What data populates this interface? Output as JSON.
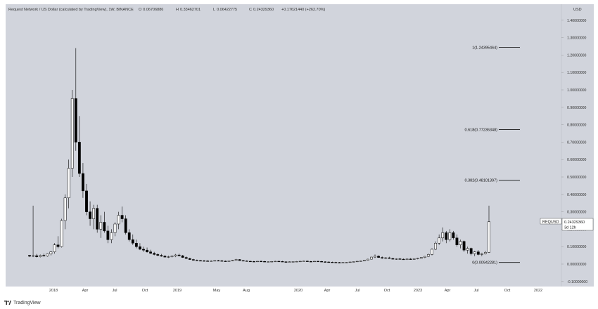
{
  "header": {
    "title": "Request Network / US Dollar (calculated by TradingView), 1W, BINANCE",
    "open": "0.06706886",
    "high": "0.33462701",
    "low": "0.06422775",
    "close": "0.24329360",
    "change": "+0.17621440 (+262.70%)"
  },
  "axis": {
    "currency": "USD",
    "y_ticks": [
      "1.40000000",
      "1.30000000",
      "1.20000000",
      "1.10000000",
      "1.00000000",
      "0.90000000",
      "0.80000000",
      "0.70000000",
      "0.60000000",
      "0.50000000",
      "0.40000000",
      "0.30000000",
      "0.20000000",
      "0.10000000",
      "0.00000000",
      "-0.10000000"
    ],
    "x_ticks": [
      "2018",
      "Apr",
      "Jul",
      "Oct",
      "2019",
      "May",
      "Aug",
      "2020",
      "Apr",
      "Jul",
      "Oct",
      "2023",
      "Apr",
      "Jul",
      "Oct",
      "2022"
    ]
  },
  "price_label": {
    "ticker": "REQUSD",
    "value": "0.24329360",
    "countdown": "3d 12h"
  },
  "fib_levels": [
    {
      "label": "1(1.24395464)",
      "value": 1.24395464
    },
    {
      "label": "0.618(0.77236348)",
      "value": 0.77236348
    },
    {
      "label": "0.382(0.48101397)",
      "value": 0.48101397
    },
    {
      "label": "0(0.00942281)",
      "value": 0.00942281
    }
  ],
  "footer": {
    "brand": "TradingView"
  },
  "colors": {
    "background": "#d1d4dc",
    "candle": "#000000",
    "axis_text": "#333333"
  },
  "chart_data": {
    "type": "candlestick",
    "title": "Request Network / US Dollar (calculated by TradingView), 1W, BINANCE",
    "ylabel": "USD",
    "ylim": [
      -0.12,
      1.5
    ],
    "grid": false,
    "series": [
      {
        "name": "REQUSD",
        "values": [
          [
            0.05,
            0.052,
            0.04,
            0.045
          ],
          [
            0.045,
            0.335,
            0.04,
            0.048
          ],
          [
            0.048,
            0.058,
            0.038,
            0.042
          ],
          [
            0.042,
            0.055,
            0.038,
            0.05
          ],
          [
            0.05,
            0.06,
            0.044,
            0.046
          ],
          [
            0.046,
            0.06,
            0.042,
            0.058
          ],
          [
            0.058,
            0.075,
            0.05,
            0.07
          ],
          [
            0.07,
            0.12,
            0.06,
            0.11
          ],
          [
            0.11,
            0.16,
            0.09,
            0.1
          ],
          [
            0.1,
            0.26,
            0.095,
            0.25
          ],
          [
            0.25,
            0.4,
            0.2,
            0.38
          ],
          [
            0.38,
            0.6,
            0.32,
            0.55
          ],
          [
            0.55,
            1.0,
            0.5,
            0.95
          ],
          [
            0.95,
            1.24,
            0.65,
            0.7
          ],
          [
            0.7,
            0.85,
            0.5,
            0.52
          ],
          [
            0.52,
            0.58,
            0.38,
            0.42
          ],
          [
            0.42,
            0.46,
            0.28,
            0.3
          ],
          [
            0.3,
            0.36,
            0.22,
            0.26
          ],
          [
            0.26,
            0.34,
            0.2,
            0.32
          ],
          [
            0.32,
            0.34,
            0.18,
            0.2
          ],
          [
            0.2,
            0.28,
            0.15,
            0.24
          ],
          [
            0.24,
            0.3,
            0.18,
            0.19
          ],
          [
            0.19,
            0.22,
            0.12,
            0.14
          ],
          [
            0.14,
            0.2,
            0.12,
            0.18
          ],
          [
            0.18,
            0.24,
            0.16,
            0.23
          ],
          [
            0.23,
            0.3,
            0.2,
            0.28
          ],
          [
            0.28,
            0.33,
            0.24,
            0.26
          ],
          [
            0.26,
            0.28,
            0.17,
            0.18
          ],
          [
            0.18,
            0.2,
            0.13,
            0.14
          ],
          [
            0.14,
            0.17,
            0.11,
            0.12
          ],
          [
            0.12,
            0.14,
            0.09,
            0.1
          ],
          [
            0.1,
            0.12,
            0.08,
            0.085
          ],
          [
            0.085,
            0.1,
            0.07,
            0.08
          ],
          [
            0.08,
            0.095,
            0.065,
            0.07
          ],
          [
            0.07,
            0.082,
            0.058,
            0.062
          ],
          [
            0.062,
            0.07,
            0.05,
            0.055
          ],
          [
            0.055,
            0.062,
            0.045,
            0.05
          ],
          [
            0.05,
            0.058,
            0.042,
            0.045
          ],
          [
            0.045,
            0.052,
            0.038,
            0.04
          ],
          [
            0.04,
            0.048,
            0.035,
            0.042
          ],
          [
            0.042,
            0.05,
            0.038,
            0.046
          ],
          [
            0.046,
            0.058,
            0.04,
            0.052
          ],
          [
            0.052,
            0.06,
            0.044,
            0.048
          ],
          [
            0.048,
            0.052,
            0.036,
            0.038
          ],
          [
            0.038,
            0.044,
            0.03,
            0.032
          ],
          [
            0.032,
            0.036,
            0.024,
            0.026
          ],
          [
            0.026,
            0.03,
            0.02,
            0.022
          ],
          [
            0.022,
            0.026,
            0.018,
            0.02
          ],
          [
            0.02,
            0.024,
            0.017,
            0.019
          ],
          [
            0.019,
            0.023,
            0.016,
            0.018
          ],
          [
            0.018,
            0.022,
            0.015,
            0.017
          ],
          [
            0.017,
            0.021,
            0.015,
            0.018
          ],
          [
            0.018,
            0.022,
            0.016,
            0.02
          ],
          [
            0.02,
            0.024,
            0.017,
            0.019
          ],
          [
            0.019,
            0.023,
            0.016,
            0.017
          ],
          [
            0.017,
            0.02,
            0.014,
            0.016
          ],
          [
            0.016,
            0.02,
            0.014,
            0.018
          ],
          [
            0.018,
            0.024,
            0.016,
            0.022
          ],
          [
            0.022,
            0.03,
            0.019,
            0.026
          ],
          [
            0.026,
            0.028,
            0.019,
            0.02
          ],
          [
            0.02,
            0.024,
            0.016,
            0.018
          ],
          [
            0.018,
            0.021,
            0.015,
            0.016
          ],
          [
            0.016,
            0.019,
            0.013,
            0.015
          ],
          [
            0.015,
            0.018,
            0.012,
            0.014
          ],
          [
            0.014,
            0.017,
            0.012,
            0.016
          ],
          [
            0.016,
            0.02,
            0.013,
            0.015
          ],
          [
            0.015,
            0.018,
            0.012,
            0.013
          ],
          [
            0.013,
            0.016,
            0.011,
            0.014
          ],
          [
            0.014,
            0.017,
            0.012,
            0.015
          ],
          [
            0.015,
            0.018,
            0.013,
            0.016
          ],
          [
            0.016,
            0.019,
            0.014,
            0.015
          ],
          [
            0.015,
            0.018,
            0.012,
            0.013
          ],
          [
            0.013,
            0.016,
            0.011,
            0.012
          ],
          [
            0.012,
            0.015,
            0.01,
            0.013
          ],
          [
            0.013,
            0.016,
            0.011,
            0.014
          ],
          [
            0.014,
            0.017,
            0.012,
            0.015
          ],
          [
            0.015,
            0.018,
            0.013,
            0.016
          ],
          [
            0.016,
            0.019,
            0.014,
            0.017
          ],
          [
            0.017,
            0.02,
            0.014,
            0.015
          ],
          [
            0.015,
            0.018,
            0.012,
            0.014
          ],
          [
            0.014,
            0.017,
            0.012,
            0.016
          ],
          [
            0.016,
            0.019,
            0.013,
            0.015
          ],
          [
            0.015,
            0.018,
            0.012,
            0.013
          ],
          [
            0.013,
            0.016,
            0.011,
            0.012
          ],
          [
            0.012,
            0.015,
            0.01,
            0.011
          ],
          [
            0.011,
            0.014,
            0.009,
            0.01
          ],
          [
            0.01,
            0.013,
            0.008,
            0.009
          ],
          [
            0.009,
            0.012,
            0.007,
            0.008
          ],
          [
            0.008,
            0.011,
            0.007,
            0.009
          ],
          [
            0.009,
            0.012,
            0.008,
            0.01
          ],
          [
            0.01,
            0.013,
            0.008,
            0.012
          ],
          [
            0.012,
            0.015,
            0.01,
            0.014
          ],
          [
            0.014,
            0.017,
            0.012,
            0.016
          ],
          [
            0.016,
            0.02,
            0.014,
            0.018
          ],
          [
            0.018,
            0.023,
            0.016,
            0.022
          ],
          [
            0.022,
            0.03,
            0.02,
            0.028
          ],
          [
            0.028,
            0.042,
            0.025,
            0.04
          ],
          [
            0.04,
            0.055,
            0.035,
            0.045
          ],
          [
            0.045,
            0.05,
            0.036,
            0.038
          ],
          [
            0.038,
            0.044,
            0.03,
            0.034
          ],
          [
            0.034,
            0.04,
            0.028,
            0.036
          ],
          [
            0.036,
            0.042,
            0.03,
            0.032
          ],
          [
            0.032,
            0.036,
            0.026,
            0.028
          ],
          [
            0.028,
            0.033,
            0.024,
            0.03
          ],
          [
            0.03,
            0.035,
            0.026,
            0.028
          ],
          [
            0.028,
            0.032,
            0.024,
            0.026
          ],
          [
            0.026,
            0.031,
            0.023,
            0.029
          ],
          [
            0.029,
            0.034,
            0.025,
            0.027
          ],
          [
            0.027,
            0.031,
            0.024,
            0.03
          ],
          [
            0.03,
            0.036,
            0.027,
            0.033
          ],
          [
            0.033,
            0.04,
            0.03,
            0.038
          ],
          [
            0.038,
            0.046,
            0.034,
            0.044
          ],
          [
            0.044,
            0.06,
            0.04,
            0.055
          ],
          [
            0.055,
            0.09,
            0.05,
            0.085
          ],
          [
            0.085,
            0.13,
            0.08,
            0.12
          ],
          [
            0.12,
            0.17,
            0.11,
            0.15
          ],
          [
            0.15,
            0.21,
            0.13,
            0.18
          ],
          [
            0.18,
            0.19,
            0.12,
            0.14
          ],
          [
            0.14,
            0.2,
            0.13,
            0.18
          ],
          [
            0.18,
            0.19,
            0.14,
            0.15
          ],
          [
            0.15,
            0.17,
            0.1,
            0.11
          ],
          [
            0.11,
            0.14,
            0.09,
            0.13
          ],
          [
            0.13,
            0.135,
            0.07,
            0.08
          ],
          [
            0.08,
            0.1,
            0.06,
            0.09
          ],
          [
            0.09,
            0.095,
            0.05,
            0.06
          ],
          [
            0.06,
            0.075,
            0.045,
            0.07
          ],
          [
            0.07,
            0.08,
            0.05,
            0.055
          ],
          [
            0.055,
            0.065,
            0.045,
            0.06
          ],
          [
            0.06,
            0.075,
            0.055,
            0.067
          ],
          [
            0.067,
            0.335,
            0.064,
            0.243
          ]
        ]
      }
    ],
    "fib_retracement": [
      1.24395464,
      0.77236348,
      0.48101397,
      0.00942281
    ]
  }
}
